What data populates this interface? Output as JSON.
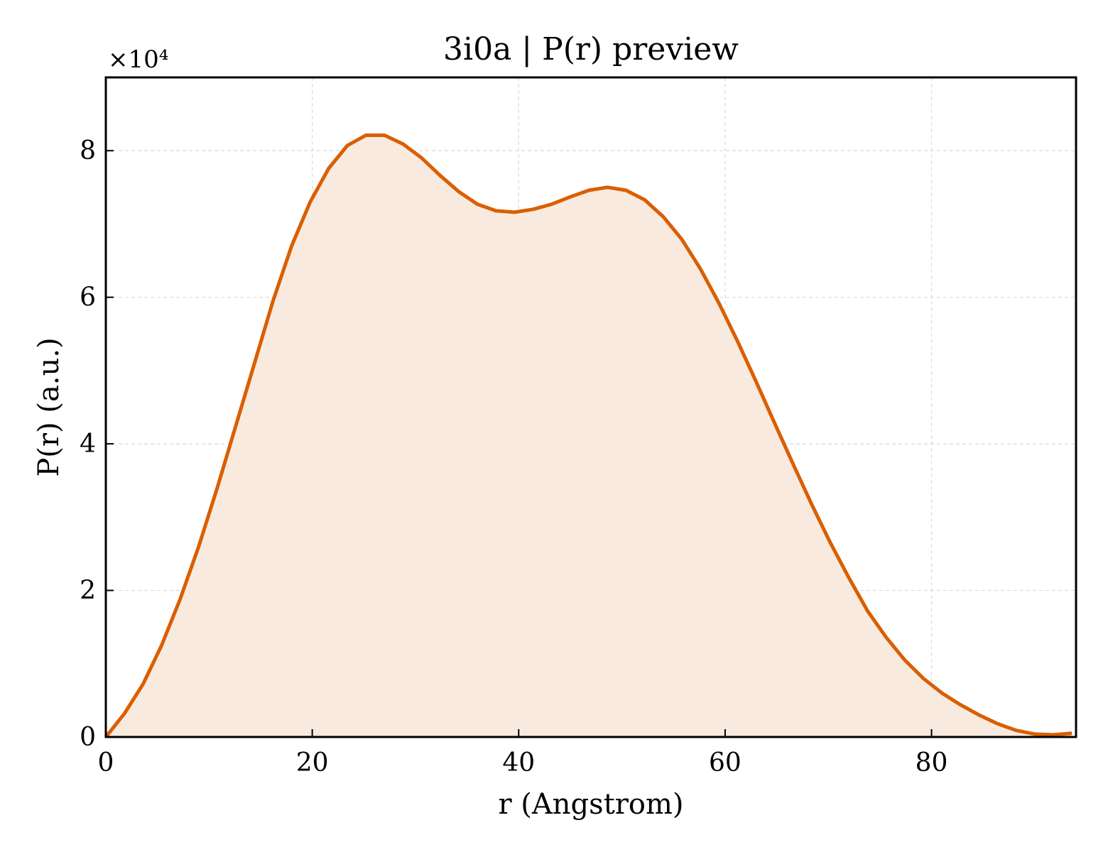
{
  "chart_data": {
    "type": "area",
    "title": "3i0a | P(r) preview",
    "xlabel": "r (Angstrom)",
    "ylabel": "P(r) (a.u.)",
    "y_offset_label": "×10⁴",
    "y_scale_factor": 10000,
    "xlim": [
      0,
      94
    ],
    "ylim": [
      0,
      90000
    ],
    "xticks": [
      0,
      20,
      40,
      60,
      80
    ],
    "yticks": [
      0,
      2,
      4,
      6,
      8
    ],
    "grid": true,
    "line_color": "#d95f02",
    "fill_color": "#f9eadf",
    "series": [
      {
        "x": [
          0,
          1.8,
          3.6,
          5.4,
          7.2,
          9.0,
          10.8,
          12.6,
          14.4,
          16.2,
          18.0,
          19.8,
          21.6,
          23.4,
          25.2,
          27.0,
          28.8,
          30.6,
          32.4,
          34.2,
          36.0,
          37.8,
          39.6,
          41.4,
          43.2,
          45.0,
          46.8,
          48.6,
          50.4,
          52.2,
          54.0,
          55.8,
          57.6,
          59.4,
          61.2,
          63.0,
          64.8,
          66.6,
          68.4,
          70.2,
          72.0,
          73.8,
          75.6,
          77.4,
          79.2,
          81.0,
          82.8,
          84.6,
          86.4,
          88.2,
          90.0,
          91.8,
          93.6
        ],
        "y": [
          0,
          3200,
          7200,
          12500,
          18800,
          26000,
          34000,
          42500,
          51000,
          59500,
          67000,
          73000,
          77600,
          80700,
          82100,
          82100,
          80900,
          79000,
          76600,
          74400,
          72700,
          71800,
          71600,
          72000,
          72700,
          73700,
          74600,
          75000,
          74600,
          73300,
          71000,
          67900,
          63900,
          59200,
          54000,
          48500,
          42800,
          37200,
          31700,
          26500,
          21700,
          17200,
          13600,
          10500,
          8000,
          6000,
          4400,
          3000,
          1800,
          900,
          400,
          300,
          500
        ]
      }
    ]
  }
}
